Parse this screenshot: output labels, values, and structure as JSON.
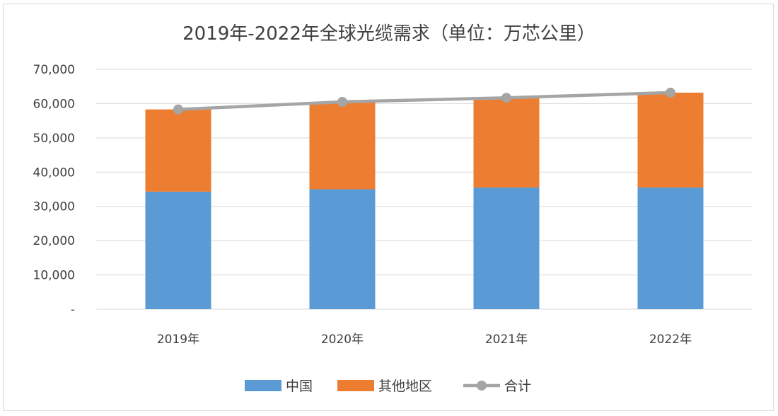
{
  "chart_data": {
    "type": "bar",
    "stacked": true,
    "title": "2019年-2022年全球光缆需求（单位：万芯公里）",
    "categories": [
      "2019年",
      "2020年",
      "2021年",
      "2022年"
    ],
    "series": [
      {
        "name": "中国",
        "type": "bar",
        "color": "#5b9bd5",
        "values": [
          34300,
          35000,
          35500,
          35500
        ]
      },
      {
        "name": "其他地区",
        "type": "bar",
        "color": "#ed7d31",
        "values": [
          24000,
          25500,
          26200,
          27700
        ]
      },
      {
        "name": "合计",
        "type": "line",
        "color": "#a5a5a5",
        "values": [
          58300,
          60500,
          61700,
          63200
        ]
      }
    ],
    "ylim": [
      0,
      70000
    ],
    "yticks": [
      0,
      10000,
      20000,
      30000,
      40000,
      50000,
      60000,
      70000
    ],
    "ytick_labels": [
      "-",
      "10,000",
      "20,000",
      "30,000",
      "40,000",
      "50,000",
      "60,000",
      "70,000"
    ],
    "grid": true,
    "legend_position": "bottom"
  }
}
